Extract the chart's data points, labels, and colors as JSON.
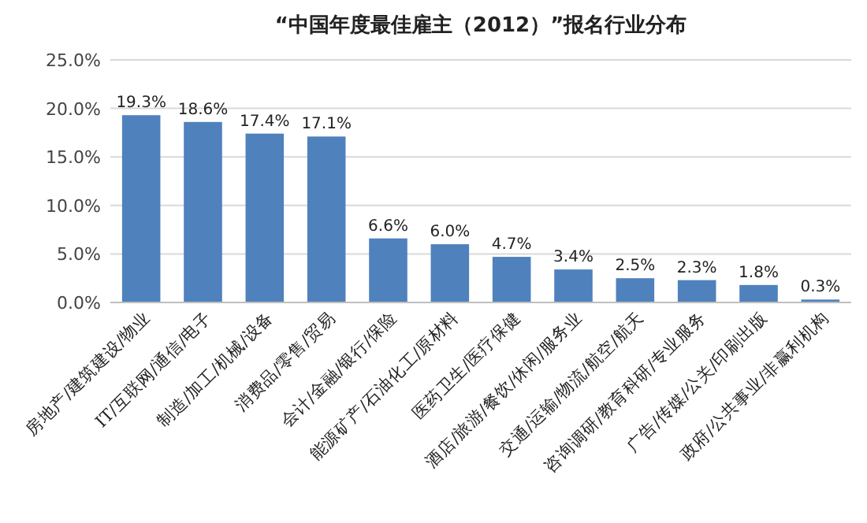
{
  "chart_data": {
    "type": "bar",
    "title": "“中国年度最佳雇主（2012）”报名行业分布",
    "categories": [
      "房地产/建筑建设/物业",
      "IT/互联网/通信/电子",
      "制造/加工/机械/设备",
      "消费品/零售/贸易",
      "会计/金融/银行/保险",
      "能源矿产/石油化工/原材料",
      "医药卫生/医疗保健",
      "酒店/旅游/餐饮/休闲/服务业",
      "交通/运输/物流/航空/航天",
      "咨询调研/教育科研/专业服务",
      "广告/传媒/公关/印刷出版",
      "政府/公共事业/非赢利机构"
    ],
    "values": [
      19.3,
      18.6,
      17.4,
      17.1,
      6.6,
      6.0,
      4.7,
      3.4,
      2.5,
      2.3,
      1.8,
      0.3
    ],
    "color": "#4f81bd",
    "ylim": [
      0,
      25
    ],
    "yticks": [
      {
        "value": 0,
        "label": "0.0%"
      },
      {
        "value": 5,
        "label": "5.0%"
      },
      {
        "value": 10,
        "label": "10.0%"
      },
      {
        "value": 15,
        "label": "15.0%"
      },
      {
        "value": 20,
        "label": "20.0%"
      },
      {
        "value": 25,
        "label": "25.0%"
      }
    ],
    "value_labels": [
      "19.3%",
      "18.6%",
      "17.4%",
      "17.1%",
      "6.6%",
      "6.0%",
      "4.7%",
      "3.4%",
      "2.5%",
      "2.3%",
      "1.8%",
      "0.3%"
    ],
    "grid": "y"
  }
}
